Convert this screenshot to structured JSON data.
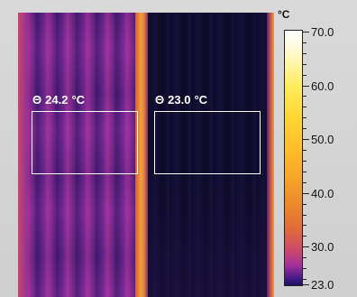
{
  "measurements": [
    {
      "symbol": "Θ",
      "value": "24.2",
      "unit": "°C"
    },
    {
      "symbol": "Θ",
      "value": "23.0",
      "unit": "°C"
    }
  ],
  "scale": {
    "unit": "°C",
    "max": 70.0,
    "min": 23.0,
    "labels": [
      "70.0",
      "60.0",
      "50.0",
      "40.0",
      "30.0",
      "23.0"
    ],
    "colors": {
      "top": "#ffffff",
      "yellow": "#ffd634",
      "orange": "#ec8a2a",
      "magenta": "#a53199",
      "bottom": "#1a1060"
    }
  }
}
